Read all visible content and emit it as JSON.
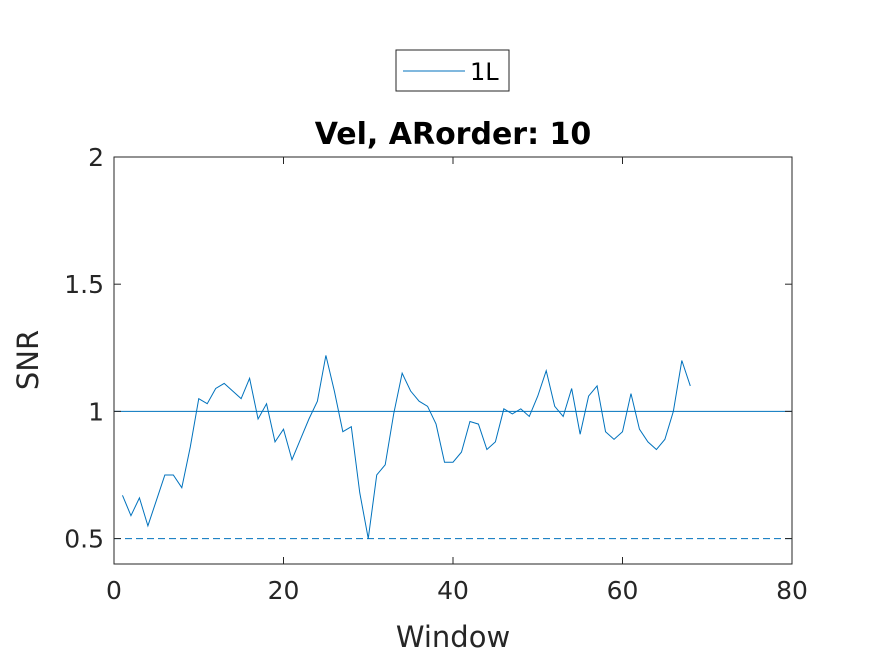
{
  "chart_data": {
    "type": "line",
    "title": "Vel, ARorder: 10",
    "xlabel": "Window",
    "ylabel": "SNR",
    "xlim": [
      0,
      80
    ],
    "ylim": [
      0.4,
      2
    ],
    "xticks": [
      0,
      20,
      40,
      60,
      80
    ],
    "yticks": [
      0.5,
      1,
      1.5,
      2
    ],
    "xtick_labels": [
      "0",
      "20",
      "40",
      "60",
      "80"
    ],
    "ytick_labels": [
      "0.5",
      "1",
      "1.5",
      "2"
    ],
    "grid": false,
    "legend_position": "top-center",
    "reference_lines": [
      {
        "y": 2,
        "style": "dashed"
      },
      {
        "y": 1,
        "style": "solid"
      },
      {
        "y": 0.5,
        "style": "dashed"
      }
    ],
    "series": [
      {
        "name": "1L",
        "color": "#0072BD",
        "x": [
          1,
          2,
          3,
          4,
          5,
          6,
          7,
          8,
          9,
          10,
          11,
          12,
          13,
          14,
          15,
          16,
          17,
          18,
          19,
          20,
          21,
          22,
          23,
          24,
          25,
          26,
          27,
          28,
          29,
          30,
          31,
          32,
          33,
          34,
          35,
          36,
          37,
          38,
          39,
          40,
          41,
          42,
          43,
          44,
          45,
          46,
          47,
          48,
          49,
          50,
          51,
          52,
          53,
          54,
          55,
          56,
          57,
          58,
          59,
          60,
          61,
          62,
          63,
          64,
          65,
          66,
          67,
          68
        ],
        "y": [
          0.67,
          0.59,
          0.66,
          0.55,
          0.65,
          0.75,
          0.75,
          0.7,
          0.86,
          1.05,
          1.03,
          1.09,
          1.11,
          1.08,
          1.05,
          1.13,
          0.97,
          1.03,
          0.88,
          0.93,
          0.81,
          0.89,
          0.97,
          1.04,
          1.22,
          1.08,
          0.92,
          0.94,
          0.68,
          0.5,
          0.75,
          0.79,
          0.99,
          1.15,
          1.08,
          1.04,
          1.02,
          0.95,
          0.8,
          0.8,
          0.84,
          0.96,
          0.95,
          0.85,
          0.88,
          1.01,
          0.99,
          1.01,
          0.98,
          1.06,
          1.16,
          1.02,
          0.98,
          1.09,
          0.91,
          1.06,
          1.1,
          0.92,
          0.89,
          0.92,
          1.07,
          0.93,
          0.88,
          0.85,
          0.89,
          1.0,
          1.2,
          1.1
        ]
      }
    ]
  }
}
